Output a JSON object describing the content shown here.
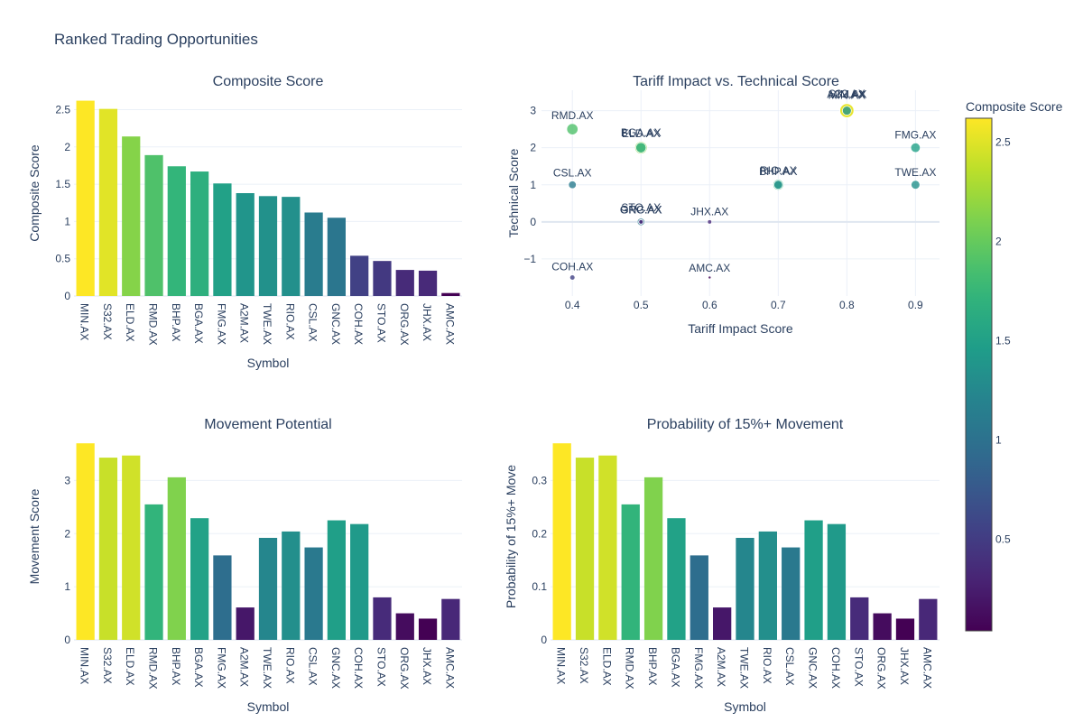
{
  "title": "Ranked Trading Opportunities",
  "chart_data": [
    {
      "type": "bar",
      "title": "Composite Score",
      "xlabel": "Symbol",
      "ylabel": "Composite Score",
      "categories": [
        "MIN.AX",
        "S32.AX",
        "ELD.AX",
        "RMD.AX",
        "BHP.AX",
        "BGA.AX",
        "FMG.AX",
        "A2M.AX",
        "TWE.AX",
        "RIO.AX",
        "CSL.AX",
        "GNC.AX",
        "COH.AX",
        "STO.AX",
        "ORG.AX",
        "JHX.AX",
        "AMC.AX"
      ],
      "values": [
        2.62,
        2.51,
        2.14,
        1.89,
        1.74,
        1.67,
        1.51,
        1.38,
        1.34,
        1.33,
        1.12,
        1.05,
        0.54,
        0.47,
        0.35,
        0.34,
        0.04
      ],
      "color_values": [
        2.62,
        2.51,
        2.14,
        1.89,
        1.74,
        1.67,
        1.51,
        1.38,
        1.34,
        1.33,
        1.12,
        1.05,
        0.54,
        0.47,
        0.35,
        0.34,
        0.04
      ],
      "yticks": [
        0,
        0.5,
        1,
        1.5,
        2,
        2.5
      ],
      "yticklabels": [
        "0",
        "0.5",
        "1",
        "1.5",
        "2",
        "2.5"
      ],
      "ylim": [
        0,
        2.76
      ],
      "grid": true
    },
    {
      "type": "scatter",
      "title": "Tariff Impact vs. Technical Score",
      "xlabel": "Tariff Impact Score",
      "ylabel": "Technical Score",
      "points": [
        {
          "label": "MIN.AX",
          "x": 0.8,
          "y": 3,
          "size_value": 2.62,
          "color_value": 2.62
        },
        {
          "label": "S32.AX",
          "x": 0.8,
          "y": 3,
          "size_value": 2.51,
          "color_value": 2.51
        },
        {
          "label": "A2M.AX",
          "x": 0.8,
          "y": 3,
          "size_value": 1.38,
          "color_value": 1.38
        },
        {
          "label": "RMD.AX",
          "x": 0.4,
          "y": 2.5,
          "size_value": 1.89,
          "color_value": 1.89
        },
        {
          "label": "ELD.AX",
          "x": 0.5,
          "y": 2,
          "size_value": 2.14,
          "color_value": 2.14
        },
        {
          "label": "BGA.AX",
          "x": 0.5,
          "y": 2,
          "size_value": 1.67,
          "color_value": 1.67
        },
        {
          "label": "FMG.AX",
          "x": 0.9,
          "y": 2,
          "size_value": 1.51,
          "color_value": 1.51
        },
        {
          "label": "BHP.AX",
          "x": 0.7,
          "y": 1,
          "size_value": 1.74,
          "color_value": 1.74
        },
        {
          "label": "RIO.AX",
          "x": 0.7,
          "y": 1,
          "size_value": 1.33,
          "color_value": 1.33
        },
        {
          "label": "CSL.AX",
          "x": 0.4,
          "y": 1,
          "size_value": 1.12,
          "color_value": 1.12
        },
        {
          "label": "TWE.AX",
          "x": 0.9,
          "y": 1,
          "size_value": 1.34,
          "color_value": 1.34
        },
        {
          "label": "GNC.AX",
          "x": 0.5,
          "y": 0,
          "size_value": 1.05,
          "color_value": 1.05
        },
        {
          "label": "ORG.AX",
          "x": 0.5,
          "y": 0,
          "size_value": 0.35,
          "color_value": 0.35
        },
        {
          "label": "STO.AX",
          "x": 0.5,
          "y": 0,
          "size_value": 0.47,
          "color_value": 0.47
        },
        {
          "label": "JHX.AX",
          "x": 0.6,
          "y": 0,
          "size_value": 0.34,
          "color_value": 0.34
        },
        {
          "label": "COH.AX",
          "x": 0.4,
          "y": -1.5,
          "size_value": 0.54,
          "color_value": 0.54
        },
        {
          "label": "AMC.AX",
          "x": 0.6,
          "y": -1.5,
          "size_value": 0.04,
          "color_value": 0.04
        }
      ],
      "xticks": [
        0.4,
        0.5,
        0.6,
        0.7,
        0.8,
        0.9
      ],
      "xticklabels": [
        "0.4",
        "0.5",
        "0.6",
        "0.7",
        "0.8",
        "0.9"
      ],
      "yticks": [
        -1,
        0,
        1,
        2,
        3
      ],
      "yticklabels": [
        "−1",
        "0",
        "1",
        "2",
        "3"
      ],
      "xlim": [
        0.355,
        0.935
      ],
      "ylim": [
        -2.0,
        3.55
      ],
      "grid": true,
      "colorbar": {
        "title": "Composite Score",
        "range": [
          0.04,
          2.62
        ],
        "ticks": [
          0.5,
          1,
          1.5,
          2,
          2.5
        ],
        "ticklabels": [
          "0.5",
          "1",
          "1.5",
          "2",
          "2.5"
        ]
      }
    },
    {
      "type": "bar",
      "title": "Movement Potential",
      "xlabel": "Symbol",
      "ylabel": "Movement Score",
      "categories": [
        "MIN.AX",
        "S32.AX",
        "ELD.AX",
        "RMD.AX",
        "BHP.AX",
        "BGA.AX",
        "FMG.AX",
        "A2M.AX",
        "TWE.AX",
        "RIO.AX",
        "CSL.AX",
        "GNC.AX",
        "COH.AX",
        "STO.AX",
        "ORG.AX",
        "JHX.AX",
        "AMC.AX"
      ],
      "values": [
        3.7,
        3.43,
        3.47,
        2.55,
        3.06,
        2.29,
        1.59,
        0.61,
        1.92,
        2.04,
        1.74,
        2.25,
        2.18,
        0.8,
        0.5,
        0.4,
        0.77
      ],
      "color_values": [
        3.7,
        3.43,
        3.47,
        2.55,
        3.06,
        2.29,
        1.59,
        0.61,
        1.92,
        2.04,
        1.74,
        2.25,
        2.18,
        0.8,
        0.5,
        0.4,
        0.77
      ],
      "yticks": [
        0,
        1,
        2,
        3
      ],
      "yticklabels": [
        "0",
        "1",
        "2",
        "3"
      ],
      "ylim": [
        0,
        3.89
      ],
      "grid": true
    },
    {
      "type": "bar",
      "title": "Probability of 15%+ Movement",
      "xlabel": "Symbol",
      "ylabel": "Probability of 15%+ Move",
      "categories": [
        "MIN.AX",
        "S32.AX",
        "ELD.AX",
        "RMD.AX",
        "BHP.AX",
        "BGA.AX",
        "FMG.AX",
        "A2M.AX",
        "TWE.AX",
        "RIO.AX",
        "CSL.AX",
        "GNC.AX",
        "COH.AX",
        "STO.AX",
        "ORG.AX",
        "JHX.AX",
        "AMC.AX"
      ],
      "values": [
        0.37,
        0.343,
        0.347,
        0.255,
        0.306,
        0.229,
        0.159,
        0.061,
        0.192,
        0.204,
        0.174,
        0.225,
        0.218,
        0.08,
        0.05,
        0.04,
        0.077
      ],
      "color_values": [
        0.37,
        0.343,
        0.347,
        0.255,
        0.306,
        0.229,
        0.159,
        0.061,
        0.192,
        0.204,
        0.174,
        0.225,
        0.218,
        0.08,
        0.05,
        0.04,
        0.077
      ],
      "yticks": [
        0,
        0.1,
        0.2,
        0.3
      ],
      "yticklabels": [
        "0",
        "0.1",
        "0.2",
        "0.3"
      ],
      "ylim": [
        0,
        0.389
      ],
      "grid": true
    }
  ],
  "colors": {
    "grid": "#ebf0f8",
    "zeroline": "#dfe6f0",
    "text": "#2a3f5f",
    "viridis": [
      "#440154",
      "#482878",
      "#3e4989",
      "#31688e",
      "#26828e",
      "#1f9e89",
      "#35b779",
      "#6ece58",
      "#b5de2b",
      "#fde725"
    ]
  }
}
